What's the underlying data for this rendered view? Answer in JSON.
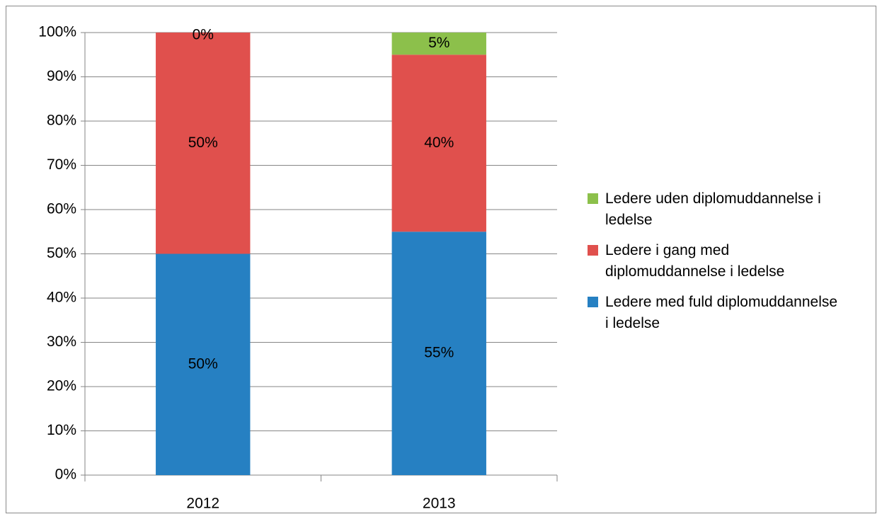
{
  "chart_data": {
    "type": "stacked_bar",
    "categories": [
      "2012",
      "2013"
    ],
    "series": [
      {
        "name": "Ledere med fuld diplomuddannelse i ledelse",
        "color": "#2680c2",
        "values": [
          50,
          55
        ],
        "value_labels": [
          "50%",
          "55%"
        ]
      },
      {
        "name": "Ledere i gang med diplomuddannelse i ledelse",
        "color": "#e0504d",
        "values": [
          50,
          40
        ],
        "value_labels": [
          "50%",
          "40%"
        ]
      },
      {
        "name": "Ledere uden diplomuddannelse i ledelse",
        "color": "#8cc04b",
        "values": [
          0,
          5
        ],
        "value_labels": [
          "0%",
          "5%"
        ]
      }
    ],
    "ylim": [
      0,
      100
    ],
    "yticks": [
      {
        "value": 0,
        "label": "0%"
      },
      {
        "value": 10,
        "label": "10%"
      },
      {
        "value": 20,
        "label": "20%"
      },
      {
        "value": 30,
        "label": "30%"
      },
      {
        "value": 40,
        "label": "40%"
      },
      {
        "value": 50,
        "label": "50%"
      },
      {
        "value": 60,
        "label": "60%"
      },
      {
        "value": 70,
        "label": "70%"
      },
      {
        "value": 80,
        "label": "80%"
      },
      {
        "value": 90,
        "label": "90%"
      },
      {
        "value": 100,
        "label": "100%"
      }
    ],
    "grid": true,
    "legend": "right"
  }
}
